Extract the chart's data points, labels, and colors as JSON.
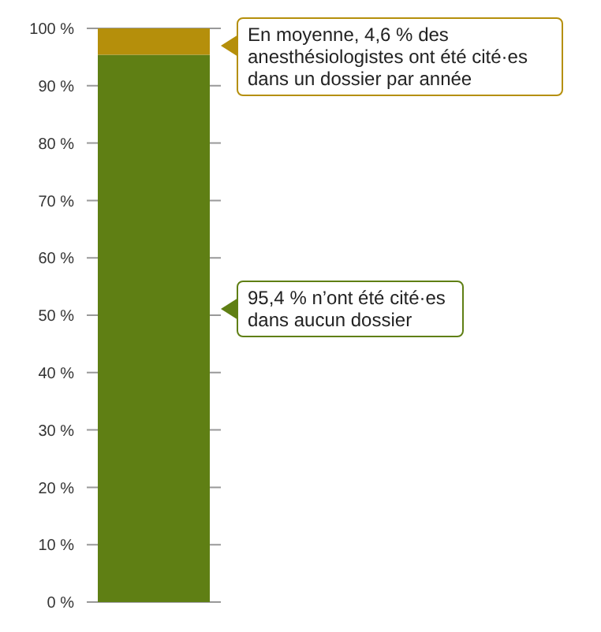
{
  "chart_data": {
    "type": "bar",
    "stacked": true,
    "categories": [
      null
    ],
    "series": [
      {
        "color": "#5f7f14",
        "values": [
          95.4
        ]
      },
      {
        "color": "#b58f0b",
        "values": [
          4.6
        ]
      }
    ],
    "ylim": [
      0,
      100
    ],
    "yticks": [
      {
        "value": 0,
        "label": "0 %"
      },
      {
        "value": 10,
        "label": "10 %"
      },
      {
        "value": 20,
        "label": "20 %"
      },
      {
        "value": 30,
        "label": "30 %"
      },
      {
        "value": 40,
        "label": "40 %"
      },
      {
        "value": 50,
        "label": "50 %"
      },
      {
        "value": 60,
        "label": "60 %"
      },
      {
        "value": 70,
        "label": "70 %"
      },
      {
        "value": 80,
        "label": "80 %"
      },
      {
        "value": 90,
        "label": "90 %"
      },
      {
        "value": 100,
        "label": "100 %"
      }
    ],
    "grid": "y",
    "legend": false,
    "annotations": [
      "En moyenne, 4,6 % des anesthésiologistes ont été cité·es dans un dossier par année",
      "95,4 % n’ont été cité·es dans aucun dossier"
    ]
  }
}
